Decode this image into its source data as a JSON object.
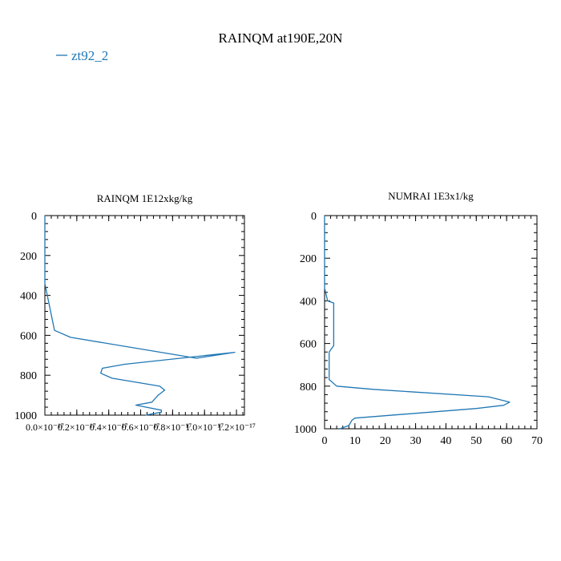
{
  "figure": {
    "title": "RAINQM at190E,20N",
    "legend": {
      "label": "zt92_2",
      "color": "#1f77b4",
      "placement": "top-left"
    }
  },
  "chart_data": [
    {
      "type": "line",
      "title": "RAINQM  1E12xkg/kg",
      "xlabel": "",
      "ylabel": "",
      "xlim": [
        0,
        1.25e-17
      ],
      "ylim": [
        1000,
        0
      ],
      "x_ticks": [
        "0.0×10⁻¹⁷",
        "0.2×10⁻¹⁷",
        "0.4×10⁻¹⁷",
        "0.6×10⁻¹⁷",
        "0.8×10⁻¹⁷",
        "1.0×10⁻¹⁷",
        "1.2×10⁻¹⁷"
      ],
      "y_ticks": [
        "0",
        "200",
        "400",
        "600",
        "800",
        "1000"
      ],
      "grid": false,
      "series": [
        {
          "name": "zt92_2",
          "color": "#1f77b4",
          "x": [
            0,
            0,
            1e-19,
            6e-19,
            1.6e-18,
            9.5e-18,
            1.19e-17,
            5e-18,
            3.6e-18,
            3.5e-18,
            4.2e-18,
            7.2e-18,
            7.5e-18,
            7.1e-18,
            6.7e-18,
            5.7e-18,
            7.3e-18,
            7.3e-18,
            6.3e-18
          ],
          "y": [
            0,
            340,
            380,
            575,
            610,
            715,
            685,
            745,
            765,
            790,
            815,
            855,
            875,
            900,
            935,
            950,
            975,
            985,
            1000
          ]
        }
      ]
    },
    {
      "type": "line",
      "title": "NUMRAI  1E3x1/kg",
      "xlabel": "",
      "ylabel": "",
      "xlim": [
        0,
        70
      ],
      "ylim": [
        1000,
        0
      ],
      "x_ticks": [
        "0",
        "10",
        "20",
        "30",
        "40",
        "50",
        "60",
        "70"
      ],
      "y_ticks": [
        "0",
        "200",
        "400",
        "600",
        "800",
        "1000"
      ],
      "grid": false,
      "series": [
        {
          "name": "zt92_2",
          "color": "#1f77b4",
          "x": [
            0,
            0,
            1,
            3,
            3,
            3,
            1.5,
            1.5,
            1.5,
            2,
            4,
            16,
            54,
            61,
            59,
            50,
            10,
            9,
            8,
            5
          ],
          "y": [
            0,
            340,
            400,
            410,
            500,
            610,
            640,
            750,
            770,
            775,
            800,
            815,
            850,
            875,
            890,
            905,
            950,
            960,
            985,
            1000
          ]
        }
      ]
    }
  ]
}
